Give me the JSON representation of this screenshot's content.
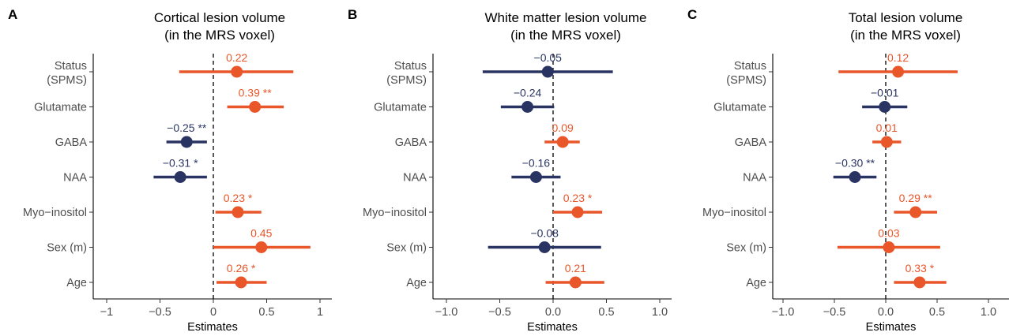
{
  "colors": {
    "positive": "#E8562A",
    "negative": "#293462"
  },
  "chart_data": [
    {
      "type": "forest",
      "letter": "A",
      "title_line1": "Cortical lesion volume",
      "title_line2": "(in the MRS voxel)",
      "xlabel": "Estimates",
      "xlim": [
        -1.12,
        1.12
      ],
      "xticks": [
        -1,
        -0.5,
        0,
        0.5,
        1
      ],
      "xtick_labels": [
        "−1",
        "−0.5",
        "0",
        "0.5",
        "1"
      ],
      "categories": [
        [
          "Status",
          "(SPMS)"
        ],
        [
          "Glutamate"
        ],
        [
          "GABA"
        ],
        [
          "NAA"
        ],
        [
          "Myo−inositol"
        ],
        [
          "Sex (m)"
        ],
        [
          "Age"
        ]
      ],
      "estimates": [
        0.22,
        0.39,
        -0.25,
        -0.31,
        0.23,
        0.45,
        0.26
      ],
      "ci_low": [
        -0.32,
        0.13,
        -0.44,
        -0.56,
        0.02,
        0.0,
        0.03
      ],
      "ci_high": [
        0.75,
        0.66,
        -0.06,
        -0.06,
        0.45,
        0.91,
        0.5
      ],
      "labels": [
        "0.22",
        "0.39 **",
        "−0.25 **",
        "−0.31 *",
        "0.23 *",
        "0.45",
        "0.26 *"
      ]
    },
    {
      "type": "forest",
      "letter": "B",
      "title_line1": "White matter lesion volume",
      "title_line2": "(in the MRS voxel)",
      "xlabel": "Estimates",
      "xlim": [
        -1.12,
        1.12
      ],
      "xticks": [
        -1,
        -0.5,
        0,
        0.5,
        1
      ],
      "xtick_labels": [
        "−1.0",
        "−0.5",
        "0.0",
        "0.5",
        "1.0"
      ],
      "categories": [
        [
          "Status",
          "(SPMS)"
        ],
        [
          "Glutamate"
        ],
        [
          "GABA"
        ],
        [
          "NAA"
        ],
        [
          "Myo−inositol"
        ],
        [
          "Sex (m)"
        ],
        [
          "Age"
        ]
      ],
      "estimates": [
        -0.05,
        -0.24,
        0.09,
        -0.16,
        0.23,
        -0.08,
        0.21
      ],
      "ci_low": [
        -0.66,
        -0.49,
        -0.08,
        -0.39,
        0.0,
        -0.61,
        -0.07
      ],
      "ci_high": [
        0.56,
        0.01,
        0.25,
        0.07,
        0.46,
        0.45,
        0.48
      ],
      "labels": [
        "−0.05",
        "−0.24",
        "0.09",
        "−0.16",
        "0.23 *",
        "−0.08",
        "0.21"
      ]
    },
    {
      "type": "forest",
      "letter": "C",
      "title_line1": "Total lesion volume",
      "title_line2": "(in the MRS voxel)",
      "xlabel": "Estimates",
      "xlim": [
        -1.12,
        1.12
      ],
      "xticks": [
        -1,
        -0.5,
        0,
        0.5,
        1
      ],
      "xtick_labels": [
        "−1.0",
        "−0.5",
        "0.0",
        "0.5",
        "1.0"
      ],
      "categories": [
        [
          "Status",
          "(SPMS)"
        ],
        [
          "Glutamate"
        ],
        [
          "GABA"
        ],
        [
          "NAA"
        ],
        [
          "Myo−inositol"
        ],
        [
          "Sex (m)"
        ],
        [
          "Age"
        ]
      ],
      "estimates": [
        0.12,
        -0.01,
        0.01,
        -0.3,
        0.29,
        0.03,
        0.33
      ],
      "ci_low": [
        -0.46,
        -0.23,
        -0.13,
        -0.51,
        0.08,
        -0.47,
        0.08
      ],
      "ci_high": [
        0.7,
        0.21,
        0.15,
        -0.09,
        0.5,
        0.53,
        0.59
      ],
      "labels": [
        "0.12",
        "−0.01",
        "0.01",
        "−0.30 **",
        "0.29 **",
        "0.03",
        "0.33 *"
      ]
    }
  ]
}
